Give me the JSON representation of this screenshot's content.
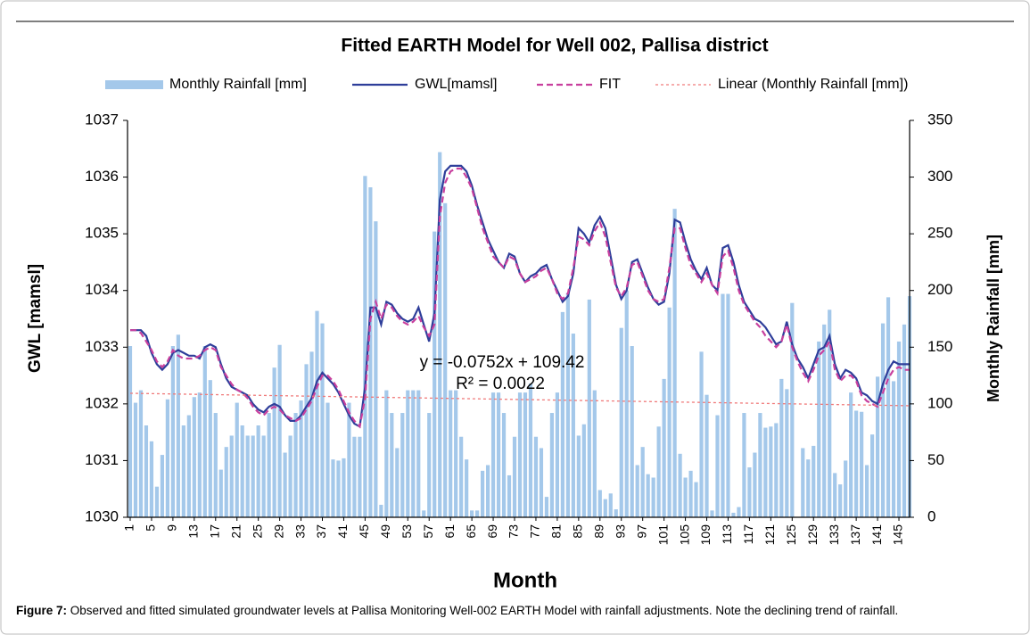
{
  "chart_data": {
    "type": "combo",
    "title": "Fitted EARTH Model for Well 002, Pallisa district",
    "xlabel": "Month",
    "ylabel": "GWL [mamsl]",
    "y2label": "Monthly Rainfall [mm]",
    "annotations": [
      "y = -0.0752x + 109.42",
      "R² = 0.0022"
    ],
    "caption": {
      "label": "Figure 7:",
      "text": " Observed and fitted simulated groundwater levels at Pallisa Monitoring Well-002 EARTH Model with rainfall adjustments. Note the declining trend of rainfall."
    },
    "legend": "top",
    "grid": false,
    "xlim": [
      0.5,
      147
    ],
    "ylim": [
      1030,
      1037
    ],
    "y2lim": [
      0,
      350
    ],
    "xticks": [
      1,
      5,
      9,
      13,
      17,
      21,
      25,
      29,
      33,
      37,
      41,
      45,
      49,
      53,
      57,
      61,
      65,
      69,
      73,
      77,
      81,
      85,
      89,
      93,
      97,
      101,
      105,
      109,
      113,
      117,
      121,
      125,
      129,
      133,
      137,
      141,
      145
    ],
    "yticks": [
      1030,
      1031,
      1032,
      1033,
      1034,
      1035,
      1036,
      1037
    ],
    "y2ticks": [
      0,
      50,
      100,
      150,
      200,
      250,
      300,
      350
    ],
    "x": [
      1,
      2,
      3,
      4,
      5,
      6,
      7,
      8,
      9,
      10,
      11,
      12,
      13,
      14,
      15,
      16,
      17,
      18,
      19,
      20,
      21,
      22,
      23,
      24,
      25,
      26,
      27,
      28,
      29,
      30,
      31,
      32,
      33,
      34,
      35,
      36,
      37,
      38,
      39,
      40,
      41,
      42,
      43,
      44,
      45,
      46,
      47,
      48,
      49,
      50,
      51,
      52,
      53,
      54,
      55,
      56,
      57,
      58,
      59,
      60,
      61,
      62,
      63,
      64,
      65,
      66,
      67,
      68,
      69,
      70,
      71,
      72,
      73,
      74,
      75,
      76,
      77,
      78,
      79,
      80,
      81,
      82,
      83,
      84,
      85,
      86,
      87,
      88,
      89,
      90,
      91,
      92,
      93,
      94,
      95,
      96,
      97,
      98,
      99,
      100,
      101,
      102,
      103,
      104,
      105,
      106,
      107,
      108,
      109,
      110,
      111,
      112,
      113,
      114,
      115,
      116,
      117,
      118,
      119,
      120,
      121,
      122,
      123,
      124,
      125,
      126,
      127,
      128,
      129,
      130,
      131,
      132,
      133,
      134,
      135,
      136,
      137,
      138,
      139,
      140,
      141,
      142,
      143,
      144,
      145,
      146,
      147
    ],
    "series": [
      {
        "name": "Monthly Rainfall [mm]",
        "type": "bar",
        "axis": "y2",
        "color": "#a4c8ea",
        "values": [
          151,
          101,
          112,
          81,
          67,
          27,
          55,
          104,
          151,
          161,
          81,
          90,
          106,
          110,
          151,
          121,
          92,
          42,
          62,
          72,
          101,
          81,
          72,
          72,
          81,
          72,
          92,
          132,
          152,
          57,
          72,
          92,
          103,
          135,
          146,
          182,
          171,
          101,
          51,
          50,
          52,
          101,
          71,
          71,
          301,
          291,
          261,
          11,
          112,
          92,
          61,
          92,
          112,
          112,
          112,
          6,
          92,
          252,
          322,
          277,
          112,
          112,
          71,
          51,
          6,
          6,
          41,
          46,
          110,
          110,
          92,
          37,
          71,
          110,
          110,
          118,
          71,
          61,
          18,
          92,
          110,
          181,
          198,
          162,
          72,
          82,
          192,
          112,
          24,
          16,
          21,
          7,
          167,
          200,
          151,
          46,
          62,
          38,
          35,
          80,
          122,
          185,
          272,
          56,
          35,
          41,
          31,
          146,
          108,
          6,
          90,
          197,
          197,
          4,
          9,
          92,
          44,
          57,
          92,
          79,
          80,
          83,
          122,
          113,
          189,
          0,
          61,
          51,
          63,
          155,
          170,
          183,
          39,
          29,
          50,
          110,
          94,
          93,
          46,
          73,
          124,
          171,
          194,
          120,
          155,
          170,
          195
        ]
      },
      {
        "name": "GWL[mamsl]",
        "type": "line",
        "color": "#2e3e9a",
        "values": [
          1033.3,
          1033.3,
          1033.3,
          1033.2,
          1032.9,
          1032.7,
          1032.6,
          1032.7,
          1032.9,
          1032.95,
          1032.9,
          1032.85,
          1032.85,
          1032.8,
          1033.0,
          1033.05,
          1033.0,
          1032.7,
          1032.45,
          1032.3,
          1032.25,
          1032.2,
          1032.15,
          1032.0,
          1031.9,
          1031.85,
          1031.95,
          1032.0,
          1031.95,
          1031.8,
          1031.7,
          1031.7,
          1031.8,
          1031.95,
          1032.1,
          1032.4,
          1032.55,
          1032.45,
          1032.35,
          1032.2,
          1032.0,
          1031.8,
          1031.65,
          1031.6,
          1032.3,
          1033.7,
          1033.7,
          1033.4,
          1033.8,
          1033.75,
          1033.6,
          1033.5,
          1033.45,
          1033.5,
          1033.7,
          1033.4,
          1033.1,
          1033.6,
          1035.6,
          1036.1,
          1036.2,
          1036.2,
          1036.2,
          1036.1,
          1035.85,
          1035.5,
          1035.2,
          1034.9,
          1034.7,
          1034.5,
          1034.4,
          1034.65,
          1034.6,
          1034.3,
          1034.15,
          1034.25,
          1034.3,
          1034.4,
          1034.45,
          1034.2,
          1034.0,
          1033.8,
          1033.9,
          1034.3,
          1035.1,
          1035.0,
          1034.85,
          1035.15,
          1035.3,
          1035.1,
          1034.6,
          1034.1,
          1033.85,
          1034.0,
          1034.5,
          1034.55,
          1034.3,
          1034.05,
          1033.85,
          1033.75,
          1033.8,
          1034.3,
          1035.25,
          1035.2,
          1034.85,
          1034.55,
          1034.35,
          1034.2,
          1034.4,
          1034.1,
          1034.0,
          1034.75,
          1034.8,
          1034.5,
          1034.1,
          1033.8,
          1033.65,
          1033.5,
          1033.45,
          1033.35,
          1033.2,
          1033.05,
          1033.1,
          1033.45,
          1033.05,
          1032.8,
          1032.65,
          1032.45,
          1032.7,
          1032.95,
          1033.0,
          1033.2,
          1032.7,
          1032.45,
          1032.6,
          1032.55,
          1032.45,
          1032.2,
          1032.15,
          1032.05,
          1032.0,
          1032.35,
          1032.6,
          1032.75,
          1032.7,
          1032.7,
          1032.7
        ]
      },
      {
        "name": "FIT",
        "type": "line",
        "dash": "7,4",
        "color": "#c8409e",
        "values": [
          1033.3,
          1033.3,
          1033.25,
          1033.1,
          1032.95,
          1032.75,
          1032.65,
          1032.75,
          1032.95,
          1032.85,
          1032.8,
          1032.8,
          1032.8,
          1032.85,
          1032.95,
          1033.0,
          1032.95,
          1032.65,
          1032.5,
          1032.35,
          1032.25,
          1032.2,
          1032.1,
          1031.95,
          1031.85,
          1031.8,
          1031.9,
          1031.95,
          1031.9,
          1031.8,
          1031.75,
          1031.7,
          1031.75,
          1031.9,
          1032.05,
          1032.3,
          1032.5,
          1032.5,
          1032.4,
          1032.25,
          1032.05,
          1031.85,
          1031.7,
          1031.6,
          1032.1,
          1033.5,
          1033.8,
          1033.5,
          1033.75,
          1033.7,
          1033.55,
          1033.45,
          1033.4,
          1033.45,
          1033.55,
          1033.35,
          1033.2,
          1033.4,
          1035.3,
          1035.9,
          1036.1,
          1036.15,
          1036.15,
          1036.0,
          1035.8,
          1035.45,
          1035.1,
          1034.85,
          1034.6,
          1034.5,
          1034.4,
          1034.6,
          1034.55,
          1034.3,
          1034.15,
          1034.2,
          1034.25,
          1034.35,
          1034.4,
          1034.2,
          1033.95,
          1033.85,
          1033.95,
          1034.4,
          1034.95,
          1034.9,
          1034.8,
          1035.05,
          1035.2,
          1034.95,
          1034.5,
          1034.05,
          1033.9,
          1034.05,
          1034.45,
          1034.5,
          1034.25,
          1034.0,
          1033.85,
          1033.8,
          1033.85,
          1034.4,
          1035.1,
          1035.1,
          1034.75,
          1034.45,
          1034.3,
          1034.15,
          1034.3,
          1034.1,
          1033.95,
          1034.6,
          1034.7,
          1034.4,
          1034.0,
          1033.75,
          1033.6,
          1033.45,
          1033.35,
          1033.2,
          1033.1,
          1033.0,
          1033.1,
          1033.4,
          1033.0,
          1032.75,
          1032.55,
          1032.4,
          1032.6,
          1032.85,
          1032.95,
          1033.1,
          1032.6,
          1032.4,
          1032.5,
          1032.5,
          1032.4,
          1032.15,
          1032.05,
          1032.0,
          1031.95,
          1032.2,
          1032.45,
          1032.6,
          1032.65,
          1032.6,
          1032.6
        ]
      },
      {
        "name": "Linear (Monthly Rainfall [mm])",
        "type": "trendline",
        "axis": "y2",
        "dash": "3,3",
        "color": "#f07a7a",
        "slope": -0.0752,
        "intercept": 109.42
      }
    ]
  }
}
